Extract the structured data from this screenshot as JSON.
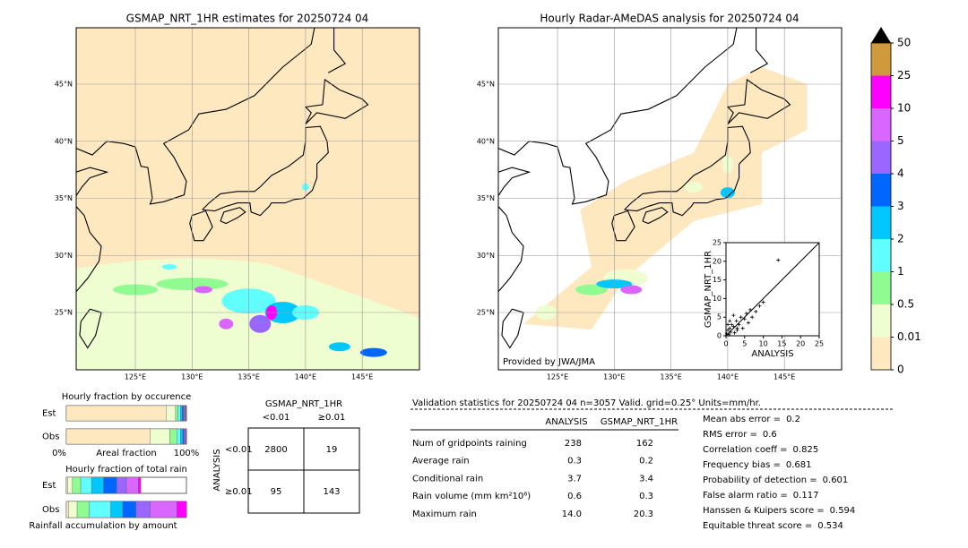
{
  "map_left": {
    "title": "GSMAP_NRT_1HR estimates for 20250724 04",
    "lat_labels": [
      "45°N",
      "40°N",
      "35°N",
      "30°N",
      "25°N"
    ],
    "lon_labels": [
      "125°E",
      "130°E",
      "135°E",
      "140°E",
      "145°E"
    ]
  },
  "map_right": {
    "title": "Hourly Radar-AMeDAS analysis for 20250724 04",
    "lat_labels": [
      "45°N",
      "40°N",
      "35°N",
      "30°N",
      "25°N"
    ],
    "lon_labels": [
      "125°E",
      "130°E",
      "135°E",
      "140°E",
      "145°E"
    ],
    "credit": "Provided by JWA/JMA"
  },
  "chart_data": {
    "type": "scatter",
    "xlabel": "ANALYSIS",
    "ylabel": "GSMAP_NRT_1HR",
    "xlim": [
      0,
      25
    ],
    "ylim": [
      0,
      25
    ],
    "xticks": [
      0,
      5,
      10,
      15,
      20,
      25
    ],
    "yticks": [
      0,
      5,
      10,
      15,
      20,
      25
    ],
    "x": [
      0.2,
      0.5,
      0.8,
      1,
      1.2,
      1.5,
      2,
      2.3,
      2.8,
      3,
      3.5,
      4,
      4.5,
      5,
      5.5,
      6,
      6.5,
      7,
      8,
      9,
      10,
      1,
      2,
      3,
      0.5,
      14
    ],
    "y": [
      0.5,
      1.5,
      0.3,
      2,
      1,
      3,
      2.5,
      0.8,
      4,
      1.5,
      3,
      5,
      2,
      4.5,
      6,
      3.5,
      7,
      5,
      6.5,
      8,
      9,
      4,
      5.5,
      2,
      3,
      20.3
    ]
  },
  "colorbar": {
    "ticks": [
      0,
      0.01,
      0.5,
      1,
      2,
      3,
      4,
      5,
      10,
      25,
      50
    ],
    "colors": [
      "#fee8c0",
      "#effed0",
      "#90fb90",
      "#60fefe",
      "#00c8fe",
      "#0066fe",
      "#9966fe",
      "#d966fe",
      "#fe00fe",
      "#d09a3c"
    ],
    "extend_color": "#000000"
  },
  "fraction_occurrence": {
    "title": "Hourly fraction by occurence",
    "rows": [
      {
        "label": "Est",
        "values": [
          0.83,
          0.08,
          0.02,
          0.02,
          0.015,
          0.01,
          0.01,
          0.005,
          0.005,
          0
        ]
      },
      {
        "label": "Obs",
        "values": [
          0.7,
          0.16,
          0.06,
          0.03,
          0.02,
          0.01,
          0.01,
          0.005,
          0.005,
          0
        ]
      }
    ],
    "axis_left": "0%",
    "axis_label": "Areal fraction",
    "axis_right": "100%"
  },
  "fraction_rain": {
    "title": "Hourly fraction of total rain",
    "rows": [
      {
        "label": "Est",
        "values": [
          0.01,
          0.04,
          0.07,
          0.09,
          0.1,
          0.11,
          0.08,
          0.1,
          0.02,
          0
        ]
      },
      {
        "label": "Obs",
        "values": [
          0.02,
          0.07,
          0.1,
          0.18,
          0.1,
          0.11,
          0.12,
          0.22,
          0.08,
          0
        ]
      }
    ],
    "axis_label": "Rainfall accumulation by amount"
  },
  "contingency": {
    "top_title": "GSMAP_NRT_1HR",
    "top_cols": [
      "<0.01",
      "≥0.01"
    ],
    "side_title": "ANALYSIS",
    "side_rows": [
      "<0.01",
      "≥0.01"
    ],
    "cells": [
      [
        "2800",
        "19"
      ],
      [
        "95",
        "143"
      ]
    ]
  },
  "validation": {
    "header": "Validation statistics for 20250724 04  n=3057 Valid. grid=0.25° Units=mm/hr.",
    "columns": [
      "ANALYSIS",
      "GSMAP_NRT_1HR"
    ],
    "rows": [
      [
        "Num of gridpoints raining",
        "238",
        "162"
      ],
      [
        "Average rain",
        "0.3",
        "0.2"
      ],
      [
        "Conditional rain",
        "3.7",
        "3.4"
      ],
      [
        "Rain volume (mm km²10⁶)",
        "0.6",
        "0.3"
      ],
      [
        "Maximum rain",
        "14.0",
        "20.3"
      ]
    ],
    "scores": [
      [
        "Mean abs error =",
        "0.2"
      ],
      [
        "RMS error =",
        "0.6"
      ],
      [
        "Correlation coeff =",
        "0.825"
      ],
      [
        "Frequency bias =",
        "0.681"
      ],
      [
        "Probability of detection =",
        "0.601"
      ],
      [
        "False alarm ratio =",
        "0.117"
      ],
      [
        "Hanssen & Kuipers score =",
        "0.594"
      ],
      [
        "Equitable threat score =",
        "0.534"
      ]
    ]
  }
}
